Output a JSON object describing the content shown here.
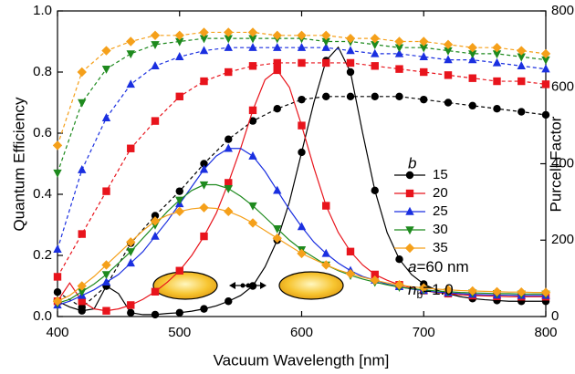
{
  "chart_data": {
    "type": "line",
    "xlabel": "Vacuum Wavelength [nm]",
    "ylabel": "Quantum Efficiency",
    "y2label": "Purcell Factor",
    "xlim": [
      400,
      800
    ],
    "xticks": [
      400,
      500,
      600,
      700,
      800
    ],
    "ylim": [
      0,
      1
    ],
    "yticks": [
      {
        "value": 0,
        "label": "0.0"
      },
      {
        "value": 0.2,
        "label": "0.2"
      },
      {
        "value": 0.4,
        "label": "0.4"
      },
      {
        "value": 0.6,
        "label": "0.6"
      },
      {
        "value": 0.8,
        "label": "0.8"
      },
      {
        "value": 1,
        "label": "1.0"
      }
    ],
    "y2lim": [
      0,
      800
    ],
    "y2ticks": [
      0,
      200,
      400,
      600,
      800
    ],
    "legend_title": "b",
    "annotations": [
      {
        "var": "a",
        "text": "=60 nm"
      },
      {
        "var": "n",
        "sub": "b",
        "text": "=1.0"
      }
    ],
    "x": [
      400,
      420,
      440,
      460,
      480,
      500,
      520,
      540,
      560,
      580,
      600,
      620,
      640,
      660,
      680,
      700,
      720,
      740,
      760,
      780,
      800
    ],
    "x_purcell": [
      400,
      410,
      420,
      430,
      440,
      450,
      460,
      470,
      480,
      490,
      500,
      510,
      520,
      530,
      540,
      550,
      560,
      570,
      580,
      590,
      600,
      610,
      620,
      630,
      640,
      650,
      660,
      670,
      680,
      690,
      700,
      710,
      720,
      730,
      740,
      750,
      760,
      770,
      780,
      790,
      800
    ],
    "series": [
      {
        "name": "15",
        "color": "#000000",
        "marker": "circle",
        "values": [
          0.08,
          0.03,
          0.1,
          0.24,
          0.33,
          0.41,
          0.5,
          0.58,
          0.64,
          0.68,
          0.71,
          0.72,
          0.72,
          0.72,
          0.72,
          0.71,
          0.7,
          0.69,
          0.68,
          0.67,
          0.66
        ],
        "purcell": [
          40,
          25,
          15,
          20,
          80,
          60,
          10,
          5,
          5,
          8,
          10,
          14,
          20,
          28,
          40,
          55,
          80,
          130,
          200,
          300,
          430,
          560,
          670,
          705,
          640,
          480,
          330,
          220,
          150,
          110,
          85,
          70,
          60,
          52,
          47,
          44,
          42,
          40,
          40,
          40,
          40
        ]
      },
      {
        "name": "20",
        "color": "#e8141c",
        "marker": "square",
        "values": [
          0.13,
          0.27,
          0.41,
          0.55,
          0.64,
          0.72,
          0.77,
          0.8,
          0.82,
          0.83,
          0.83,
          0.83,
          0.83,
          0.82,
          0.81,
          0.8,
          0.79,
          0.78,
          0.77,
          0.77,
          0.76
        ],
        "purcell": [
          40,
          88,
          40,
          20,
          15,
          20,
          30,
          45,
          65,
          90,
          120,
          160,
          210,
          270,
          350,
          440,
          540,
          620,
          645,
          600,
          500,
          390,
          290,
          220,
          170,
          135,
          110,
          95,
          83,
          75,
          68,
          63,
          60,
          57,
          55,
          54,
          53,
          52,
          52,
          52,
          52
        ]
      },
      {
        "name": "25",
        "color": "#1a2fe0",
        "marker": "triangle-up",
        "values": [
          0.22,
          0.48,
          0.65,
          0.76,
          0.82,
          0.85,
          0.87,
          0.88,
          0.88,
          0.88,
          0.88,
          0.88,
          0.87,
          0.86,
          0.86,
          0.85,
          0.84,
          0.84,
          0.83,
          0.82,
          0.81
        ],
        "purcell": [
          30,
          40,
          55,
          70,
          90,
          110,
          140,
          170,
          210,
          250,
          295,
          340,
          385,
          420,
          440,
          440,
          420,
          380,
          330,
          280,
          235,
          195,
          165,
          140,
          120,
          105,
          95,
          85,
          78,
          72,
          68,
          64,
          62,
          60,
          58,
          57,
          56,
          56,
          55,
          55,
          55
        ]
      },
      {
        "name": "30",
        "color": "#1e8a1e",
        "marker": "triangle-down",
        "values": [
          0.47,
          0.7,
          0.81,
          0.86,
          0.89,
          0.9,
          0.91,
          0.91,
          0.91,
          0.91,
          0.91,
          0.9,
          0.9,
          0.89,
          0.88,
          0.88,
          0.87,
          0.86,
          0.86,
          0.85,
          0.84
        ],
        "purcell": [
          35,
          45,
          65,
          85,
          110,
          140,
          170,
          205,
          240,
          275,
          305,
          330,
          345,
          345,
          335,
          315,
          290,
          260,
          230,
          200,
          175,
          155,
          135,
          120,
          108,
          98,
          90,
          83,
          77,
          73,
          70,
          67,
          65,
          63,
          62,
          61,
          60,
          60,
          59,
          59,
          59
        ]
      },
      {
        "name": "35",
        "color": "#f5a01a",
        "marker": "diamond",
        "values": [
          0.56,
          0.8,
          0.87,
          0.9,
          0.92,
          0.92,
          0.93,
          0.93,
          0.93,
          0.92,
          0.92,
          0.92,
          0.91,
          0.91,
          0.9,
          0.9,
          0.89,
          0.88,
          0.88,
          0.87,
          0.86
        ],
        "purcell": [
          40,
          55,
          80,
          105,
          135,
          165,
          195,
          225,
          250,
          265,
          275,
          282,
          285,
          283,
          275,
          262,
          245,
          225,
          205,
          185,
          165,
          150,
          135,
          122,
          112,
          103,
          95,
          88,
          83,
          78,
          75,
          72,
          70,
          68,
          67,
          66,
          65,
          64,
          64,
          63,
          63
        ]
      }
    ]
  }
}
